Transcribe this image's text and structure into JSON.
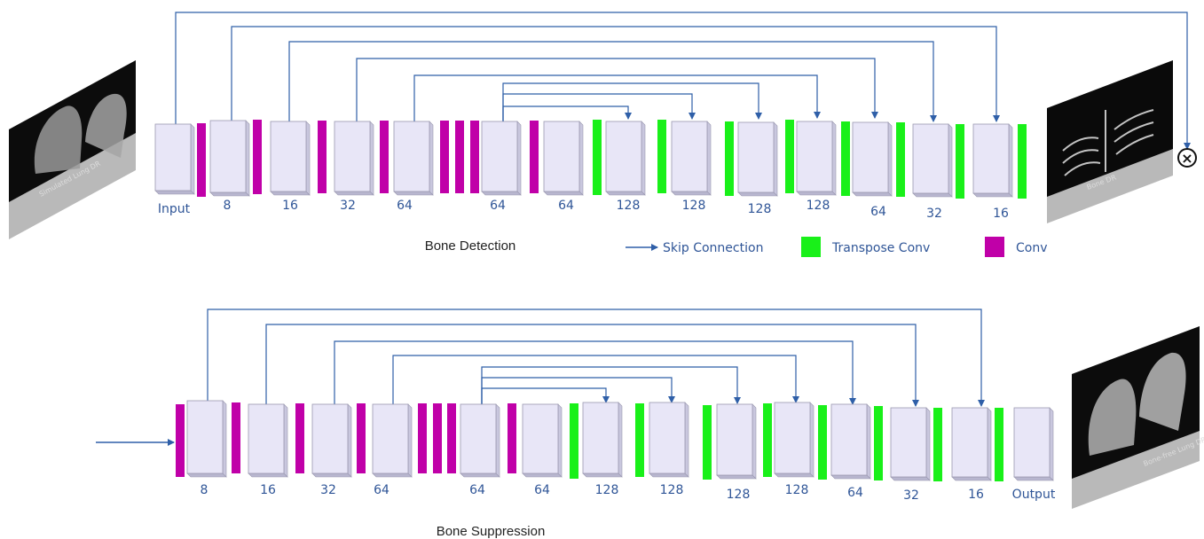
{
  "colors": {
    "conv": "#c000a8",
    "transpose": "#19f019",
    "block_face": "#e8e6f7",
    "block_edge": "#9a98b0",
    "skip": "#2f5fa8",
    "label": "#2f5597"
  },
  "top": {
    "caption": "Bone Detection",
    "input_thumb_text": "Simulated Lung DR",
    "output_thumb_text": "Bone DR",
    "multiply_symbol": "×",
    "labels": [
      "Input",
      "8",
      "16",
      "32",
      "64",
      "64",
      "64",
      "128",
      "128",
      "128",
      "128",
      "64",
      "32",
      "16"
    ]
  },
  "bottom": {
    "caption": "Bone Suppression",
    "output_thumb_text": "Bone-free Lung DR",
    "labels": [
      "8",
      "16",
      "32",
      "64",
      "64",
      "64",
      "128",
      "128",
      "128",
      "128",
      "64",
      "32",
      "16",
      "Output"
    ]
  },
  "legend": {
    "skip": "Skip Connection",
    "transpose": "Transpose Conv",
    "conv": "Conv"
  }
}
